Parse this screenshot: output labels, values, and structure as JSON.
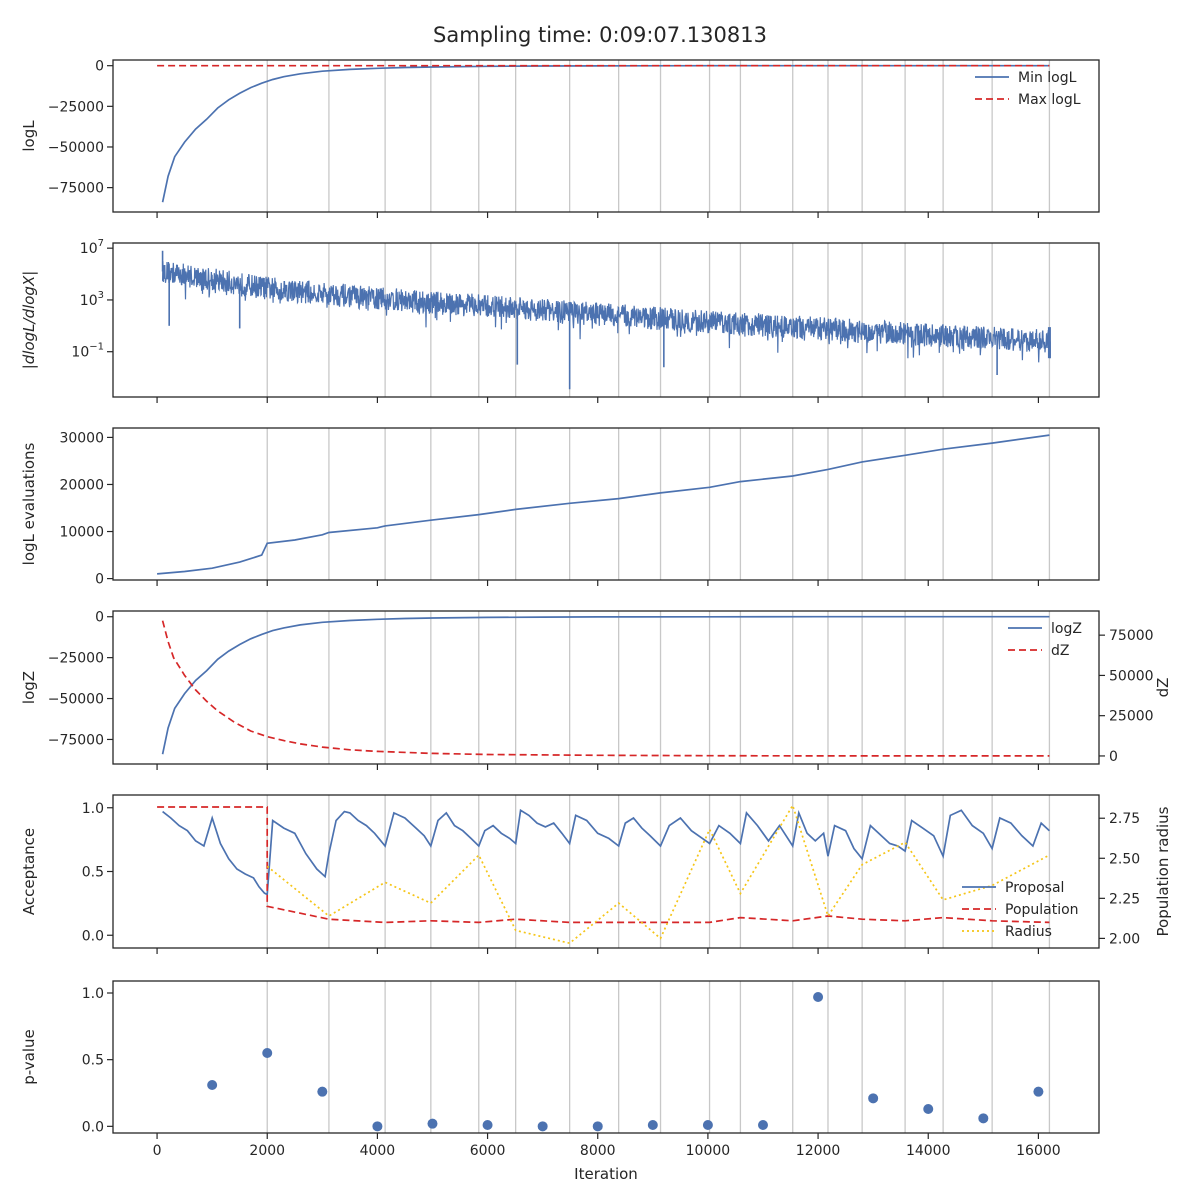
{
  "title": "Sampling time: 0:09:07.130813",
  "colors": {
    "blue": "#4c72b0",
    "red": "#d62728",
    "yellow": "#f5c518",
    "grid": "#c8c8c8",
    "axis": "#262626"
  },
  "xaxis": {
    "label": "Iteration",
    "xlim": [
      -800,
      17100
    ],
    "ticks": [
      0,
      2000,
      4000,
      6000,
      8000,
      10000,
      12000,
      14000,
      16000
    ],
    "tick_labels": [
      "0",
      "2000",
      "4000",
      "6000",
      "8000",
      "10000",
      "12000",
      "14000",
      "16000"
    ]
  },
  "vlines": [
    2000,
    3120,
    4140,
    4970,
    5840,
    6510,
    7490,
    8380,
    9140,
    10030,
    10590,
    11540,
    12180,
    12800,
    13580,
    14270,
    15160,
    16200
  ],
  "chart_data": [
    {
      "id": "logl",
      "type": "line",
      "ylabel": "logL",
      "ylim": [
        -90000,
        3500
      ],
      "yticks": [
        0,
        -25000,
        -50000,
        -75000
      ],
      "ytick_labels": [
        "0",
        "−25000",
        "−50000",
        "−75000"
      ],
      "legend": {
        "position": "top-right",
        "entries": [
          "Min logL",
          "Max logL"
        ]
      },
      "series": [
        {
          "name": "Min logL",
          "style": "solid",
          "color": "blue",
          "x": [
            100,
            200,
            320,
            500,
            700,
            900,
            1100,
            1300,
            1500,
            1700,
            1900,
            2100,
            2300,
            2600,
            3000,
            3500,
            4000,
            4500,
            5000,
            6000,
            7000,
            8000,
            10000,
            12000,
            14000,
            16200
          ],
          "y": [
            -84000,
            -68000,
            -56000,
            -47000,
            -39000,
            -33000,
            -26000,
            -21000,
            -17000,
            -13500,
            -10800,
            -8500,
            -6800,
            -5000,
            -3400,
            -2300,
            -1600,
            -1100,
            -800,
            -400,
            -200,
            -100,
            -30,
            -10,
            -5,
            -2
          ]
        },
        {
          "name": "Max logL",
          "style": "dashed",
          "color": "red",
          "x": [
            0,
            16200
          ],
          "y": [
            0,
            0
          ]
        }
      ]
    },
    {
      "id": "dlogl",
      "type": "line",
      "ylabel": "|dlogL/dlogX|",
      "yscale": "log",
      "ylim": [
        -4.5,
        7.4
      ],
      "yticks": [
        7,
        3,
        -1
      ],
      "ytick_labels": [
        "10^7",
        "10^3",
        "10^−1"
      ],
      "series": [
        {
          "name": "",
          "style": "solid",
          "color": "blue",
          "x": [
            100,
            2000,
            4000,
            6000,
            8000,
            10000,
            12000,
            14000,
            16200
          ],
          "y": [
            5.2,
            3.9,
            3.1,
            2.5,
            1.9,
            1.3,
            0.8,
            0.3,
            -0.2
          ],
          "noise_amplitude": 0.9,
          "spikes": [
            [
              100,
              6.8
            ],
            [
              220,
              1.0
            ],
            [
              1500,
              0.8
            ],
            [
              6540,
              -2.0
            ],
            [
              7490,
              -3.9
            ],
            [
              9200,
              -2.2
            ],
            [
              15250,
              -2.8
            ],
            [
              16210,
              -1.5
            ]
          ]
        }
      ]
    },
    {
      "id": "evals",
      "type": "line",
      "ylabel": "logL evaluations",
      "ylim": [
        -300,
        32000
      ],
      "yticks": [
        0,
        10000,
        20000,
        30000
      ],
      "ytick_labels": [
        "0",
        "10000",
        "20000",
        "30000"
      ],
      "series": [
        {
          "name": "",
          "style": "solid",
          "color": "blue",
          "x": [
            0,
            500,
            1000,
            1500,
            1900,
            2000,
            2500,
            3000,
            3120,
            4000,
            4140,
            4970,
            5840,
            6510,
            7490,
            8380,
            9140,
            10030,
            10590,
            11540,
            12180,
            12800,
            13580,
            14270,
            15160,
            16200
          ],
          "y": [
            1000,
            1500,
            2200,
            3500,
            5000,
            7500,
            8200,
            9300,
            9800,
            10800,
            11200,
            12400,
            13600,
            14700,
            16000,
            17000,
            18200,
            19400,
            20600,
            21800,
            23200,
            24800,
            26200,
            27500,
            28800,
            30500
          ]
        }
      ]
    },
    {
      "id": "logz",
      "type": "line",
      "ylabel": "logZ",
      "ylim": [
        -90000,
        3500
      ],
      "yticks": [
        0,
        -25000,
        -50000,
        -75000
      ],
      "ytick_labels": [
        "0",
        "−25000",
        "−50000",
        "−75000"
      ],
      "y2label": "dZ",
      "y2lim": [
        -5000,
        90000
      ],
      "y2ticks": [
        0,
        25000,
        50000,
        75000
      ],
      "y2tick_labels": [
        "0",
        "25000",
        "50000",
        "75000"
      ],
      "legend": {
        "position": "top-right",
        "entries": [
          "logZ",
          "dZ"
        ]
      },
      "series": [
        {
          "name": "logZ",
          "style": "solid",
          "color": "blue",
          "axis": "left",
          "x": [
            100,
            200,
            320,
            500,
            700,
            900,
            1100,
            1300,
            1500,
            1700,
            1900,
            2100,
            2300,
            2600,
            3000,
            3500,
            4000,
            4500,
            5000,
            6000,
            7000,
            8000,
            10000,
            12000,
            14000,
            16200
          ],
          "y": [
            -84000,
            -68000,
            -56000,
            -47000,
            -39000,
            -33000,
            -26000,
            -21000,
            -17000,
            -13500,
            -10800,
            -8500,
            -6800,
            -5000,
            -3400,
            -2300,
            -1600,
            -1100,
            -800,
            -400,
            -200,
            -100,
            -30,
            -10,
            -5,
            -2
          ]
        },
        {
          "name": "dZ",
          "style": "dashed",
          "color": "red",
          "axis": "right",
          "x": [
            100,
            200,
            300,
            500,
            700,
            900,
            1100,
            1400,
            1700,
            2000,
            2300,
            2600,
            3000,
            3500,
            4000,
            5000,
            6000,
            8000,
            10000,
            12000,
            14000,
            16200
          ],
          "y": [
            84000,
            71000,
            61000,
            50000,
            41000,
            34000,
            28000,
            21000,
            15500,
            12000,
            9500,
            7500,
            5500,
            3800,
            2800,
            1600,
            900,
            400,
            150,
            50,
            20,
            10
          ]
        }
      ]
    },
    {
      "id": "acceptance",
      "type": "line",
      "ylabel": "Acceptance",
      "ylim": [
        -0.1,
        1.1
      ],
      "yticks": [
        0,
        0.5,
        1.0
      ],
      "ytick_labels": [
        "0.0",
        "0.5",
        "1.0"
      ],
      "y2label": "Population radius",
      "y2lim": [
        1.94,
        2.895
      ],
      "y2ticks": [
        2.0,
        2.25,
        2.5,
        2.75
      ],
      "y2tick_labels": [
        "2.00",
        "2.25",
        "2.50",
        "2.75"
      ],
      "legend": {
        "position": "bottom-right",
        "entries": [
          "Proposal",
          "Population",
          "Radius"
        ]
      },
      "series": [
        {
          "name": "Proposal",
          "style": "solid",
          "color": "blue",
          "axis": "left",
          "x": [
            100,
            250,
            400,
            550,
            700,
            850,
            1000,
            1150,
            1300,
            1450,
            1600,
            1750,
            1850,
            1950,
            2000,
            2100,
            2300,
            2500,
            2700,
            2900,
            3050,
            3120,
            3250,
            3400,
            3500,
            3650,
            3800,
            3950,
            4140,
            4300,
            4500,
            4700,
            4850,
            4970,
            5100,
            5250,
            5400,
            5550,
            5700,
            5840,
            5950,
            6100,
            6250,
            6400,
            6510,
            6600,
            6750,
            6900,
            7050,
            7200,
            7350,
            7490,
            7600,
            7800,
            8000,
            8200,
            8380,
            8500,
            8650,
            8800,
            8950,
            9140,
            9300,
            9500,
            9700,
            9900,
            10030,
            10200,
            10400,
            10590,
            10700,
            10900,
            11100,
            11300,
            11540,
            11650,
            11800,
            11950,
            12100,
            12180,
            12300,
            12500,
            12650,
            12800,
            12950,
            13100,
            13300,
            13450,
            13580,
            13700,
            13900,
            14100,
            14270,
            14400,
            14600,
            14800,
            15000,
            15160,
            15300,
            15500,
            15700,
            15900,
            16050,
            16200
          ],
          "y": [
            0.97,
            0.92,
            0.86,
            0.82,
            0.74,
            0.7,
            0.92,
            0.72,
            0.6,
            0.52,
            0.48,
            0.45,
            0.38,
            0.33,
            0.32,
            0.9,
            0.84,
            0.8,
            0.64,
            0.52,
            0.46,
            0.64,
            0.9,
            0.97,
            0.96,
            0.9,
            0.86,
            0.8,
            0.7,
            0.96,
            0.92,
            0.84,
            0.78,
            0.7,
            0.9,
            0.96,
            0.86,
            0.82,
            0.76,
            0.7,
            0.82,
            0.86,
            0.8,
            0.76,
            0.72,
            0.98,
            0.94,
            0.88,
            0.85,
            0.88,
            0.8,
            0.72,
            0.94,
            0.9,
            0.8,
            0.76,
            0.7,
            0.88,
            0.92,
            0.84,
            0.78,
            0.7,
            0.86,
            0.92,
            0.82,
            0.76,
            0.72,
            0.86,
            0.8,
            0.72,
            0.96,
            0.86,
            0.74,
            0.86,
            0.7,
            0.96,
            0.8,
            0.74,
            0.8,
            0.62,
            0.86,
            0.82,
            0.68,
            0.6,
            0.86,
            0.8,
            0.72,
            0.7,
            0.66,
            0.9,
            0.84,
            0.78,
            0.62,
            0.94,
            0.98,
            0.86,
            0.8,
            0.68,
            0.92,
            0.88,
            0.78,
            0.7,
            0.88,
            0.82
          ]
        },
        {
          "name": "Population",
          "style": "dashed",
          "color": "red",
          "axis": "right",
          "x": [
            0,
            2000,
            2000,
            3120,
            4140,
            4970,
            5840,
            6510,
            7490,
            8380,
            9140,
            10030,
            10590,
            11540,
            12180,
            12800,
            13580,
            14270,
            15160,
            16200
          ],
          "y": [
            2.82,
            2.82,
            2.2,
            2.12,
            2.1,
            2.11,
            2.1,
            2.12,
            2.1,
            2.1,
            2.1,
            2.1,
            2.13,
            2.11,
            2.14,
            2.12,
            2.11,
            2.13,
            2.11,
            2.1
          ]
        },
        {
          "name": "Radius",
          "style": "dotted",
          "color": "yellow",
          "axis": "right",
          "x": [
            2000,
            3120,
            4140,
            4970,
            5840,
            6510,
            7490,
            8380,
            9140,
            10030,
            10590,
            11540,
            12180,
            12800,
            13580,
            14270,
            15160,
            16200
          ],
          "y": [
            2.45,
            2.14,
            2.35,
            2.22,
            2.52,
            2.05,
            1.97,
            2.22,
            2.0,
            2.68,
            2.28,
            2.83,
            2.14,
            2.46,
            2.6,
            2.24,
            2.33,
            2.52
          ]
        }
      ]
    },
    {
      "id": "pvalue",
      "type": "scatter",
      "ylabel": "p-value",
      "ylim": [
        -0.05,
        1.09
      ],
      "yticks": [
        0,
        0.5,
        1.0
      ],
      "ytick_labels": [
        "0.0",
        "0.5",
        "1.0"
      ],
      "series": [
        {
          "name": "",
          "color": "blue",
          "x": [
            1000,
            2000,
            3000,
            4000,
            5000,
            6000,
            7000,
            8000,
            9000,
            10000,
            11000,
            12000,
            13000,
            14000,
            15000,
            16000
          ],
          "y": [
            0.31,
            0.55,
            0.26,
            0.0,
            0.02,
            0.01,
            0.0,
            0.0,
            0.01,
            0.01,
            0.01,
            0.97,
            0.21,
            0.13,
            0.06,
            0.26
          ]
        }
      ]
    }
  ]
}
